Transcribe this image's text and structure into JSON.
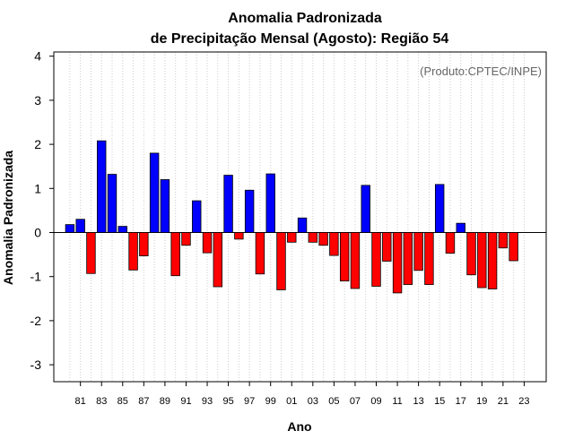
{
  "chart_data": {
    "type": "bar",
    "title_line1": "Anomalia Padronizada",
    "title_line2": "de Precipitação Mensal (Agosto): Região 54",
    "xlabel": "Ano",
    "ylabel": "Anomalia Padronizada",
    "annotation": "(Produto:CPTEC/INPE)",
    "ylim": [
      -3.35,
      4.1
    ],
    "yticks": [
      -3,
      -2,
      -1,
      0,
      1,
      2,
      3,
      4
    ],
    "grid": "vertical-dotted",
    "colors": {
      "positive": "#0000ff",
      "negative": "#ff0000",
      "outline": "#000000",
      "grid": "#cccccc"
    },
    "categories": [
      "1980",
      "1981",
      "1982",
      "1983",
      "1984",
      "1985",
      "1986",
      "1987",
      "1988",
      "1989",
      "1990",
      "1991",
      "1992",
      "1993",
      "1994",
      "1995",
      "1996",
      "1997",
      "1998",
      "1999",
      "2000",
      "2001",
      "2002",
      "2003",
      "2004",
      "2005",
      "2006",
      "2007",
      "2008",
      "2009",
      "2010",
      "2011",
      "2012",
      "2013",
      "2014",
      "2015",
      "2016",
      "2017",
      "2018",
      "2019",
      "2020",
      "2021",
      "2022",
      "2023"
    ],
    "tick_labels": [
      "81",
      "83",
      "85",
      "87",
      "89",
      "91",
      "93",
      "95",
      "97",
      "99",
      "01",
      "03",
      "05",
      "07",
      "09",
      "11",
      "13",
      "15",
      "17",
      "19",
      "21",
      "23"
    ],
    "tick_years": [
      "1981",
      "1983",
      "1985",
      "1987",
      "1989",
      "1991",
      "1993",
      "1995",
      "1997",
      "1999",
      "2001",
      "2003",
      "2005",
      "2007",
      "2009",
      "2011",
      "2013",
      "2015",
      "2017",
      "2019",
      "2021",
      "2023"
    ],
    "values": [
      0.18,
      0.3,
      -0.93,
      2.08,
      1.32,
      0.14,
      -0.85,
      -0.53,
      1.8,
      1.2,
      -0.98,
      -0.29,
      0.72,
      -0.46,
      -1.23,
      1.3,
      -0.15,
      0.96,
      -0.94,
      1.33,
      -1.3,
      -0.22,
      0.33,
      -0.22,
      -0.29,
      -0.52,
      -1.1,
      -1.27,
      1.07,
      -1.22,
      -0.65,
      -1.37,
      -1.18,
      -0.86,
      -1.18,
      1.09,
      -0.47,
      0.21,
      -0.96,
      -1.25,
      -1.28,
      -0.35,
      -0.64,
      0
    ]
  }
}
